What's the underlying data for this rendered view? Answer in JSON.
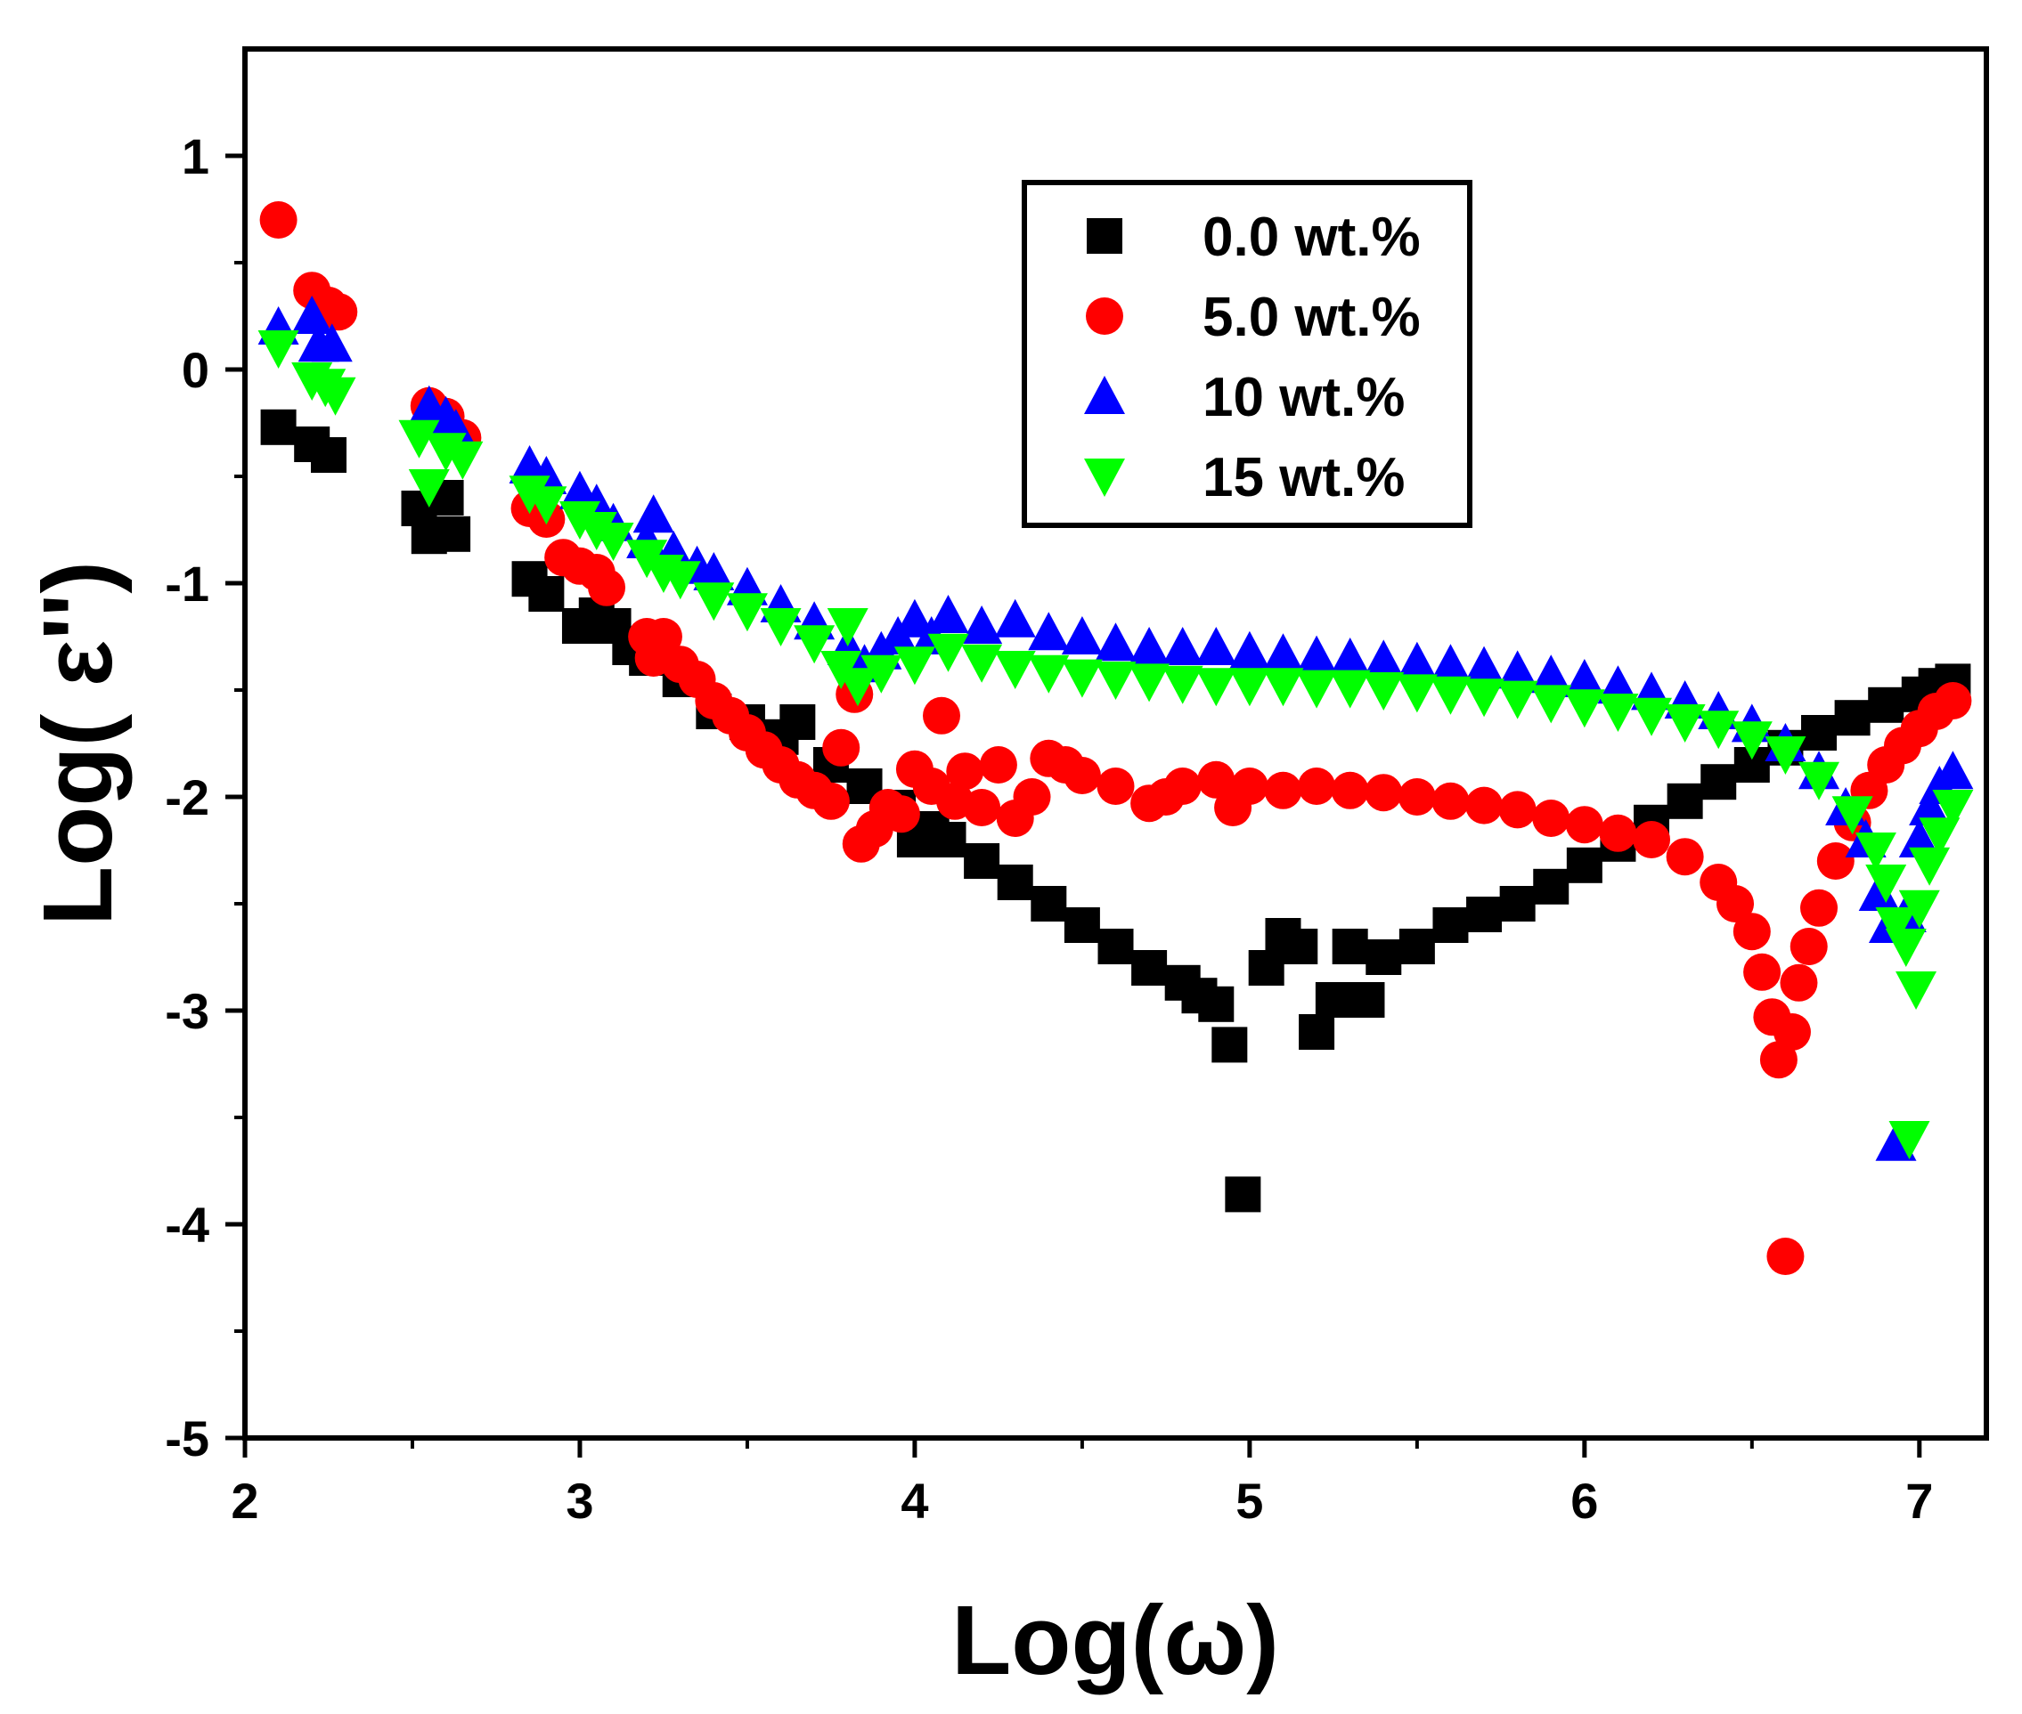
{
  "chart_data": {
    "type": "scatter",
    "title": "",
    "xlabel": "Log(ω)",
    "ylabel": "Log( ε'')",
    "xlim": [
      2,
      7.2
    ],
    "ylim": [
      -5,
      1.5
    ],
    "xticks": [
      "2",
      "3",
      "4",
      "5",
      "6",
      "7"
    ],
    "yticks": [
      "-5",
      "-4",
      "-3",
      "-2",
      "-1",
      "0",
      "1"
    ],
    "legend_position": "top-center-right",
    "series": [
      {
        "name": "0.0 wt.%",
        "color": "#000000",
        "marker": "square",
        "points": [
          [
            2.1,
            -0.27
          ],
          [
            2.2,
            -0.35
          ],
          [
            2.25,
            -0.4
          ],
          [
            2.52,
            -0.65
          ],
          [
            2.55,
            -0.78
          ],
          [
            2.6,
            -0.6
          ],
          [
            2.62,
            -0.77
          ],
          [
            2.85,
            -0.98
          ],
          [
            2.9,
            -1.05
          ],
          [
            3.0,
            -1.2
          ],
          [
            3.05,
            -1.15
          ],
          [
            3.1,
            -1.2
          ],
          [
            3.15,
            -1.3
          ],
          [
            3.2,
            -1.35
          ],
          [
            3.3,
            -1.45
          ],
          [
            3.4,
            -1.6
          ],
          [
            3.5,
            -1.65
          ],
          [
            3.6,
            -1.72
          ],
          [
            3.65,
            -1.65
          ],
          [
            3.75,
            -1.85
          ],
          [
            3.85,
            -1.95
          ],
          [
            3.95,
            -2.05
          ],
          [
            4.0,
            -2.2
          ],
          [
            4.05,
            -2.15
          ],
          [
            4.1,
            -2.2
          ],
          [
            4.2,
            -2.3
          ],
          [
            4.3,
            -2.4
          ],
          [
            4.4,
            -2.5
          ],
          [
            4.5,
            -2.6
          ],
          [
            4.6,
            -2.7
          ],
          [
            4.7,
            -2.8
          ],
          [
            4.8,
            -2.87
          ],
          [
            4.85,
            -2.93
          ],
          [
            4.9,
            -2.97
          ],
          [
            4.94,
            -3.16
          ],
          [
            4.98,
            -3.86
          ],
          [
            5.05,
            -2.8
          ],
          [
            5.1,
            -2.65
          ],
          [
            5.15,
            -2.7
          ],
          [
            5.2,
            -3.1
          ],
          [
            5.25,
            -2.95
          ],
          [
            5.3,
            -2.7
          ],
          [
            5.35,
            -2.95
          ],
          [
            5.4,
            -2.75
          ],
          [
            5.5,
            -2.7
          ],
          [
            5.6,
            -2.6
          ],
          [
            5.7,
            -2.55
          ],
          [
            5.8,
            -2.5
          ],
          [
            5.9,
            -2.42
          ],
          [
            6.0,
            -2.32
          ],
          [
            6.1,
            -2.22
          ],
          [
            6.2,
            -2.12
          ],
          [
            6.3,
            -2.02
          ],
          [
            6.4,
            -1.93
          ],
          [
            6.5,
            -1.85
          ],
          [
            6.6,
            -1.77
          ],
          [
            6.7,
            -1.7
          ],
          [
            6.8,
            -1.63
          ],
          [
            6.9,
            -1.57
          ],
          [
            7.0,
            -1.52
          ],
          [
            7.05,
            -1.48
          ],
          [
            7.1,
            -1.46
          ]
        ]
      },
      {
        "name": "5.0 wt.%",
        "color": "#ff0000",
        "marker": "circle",
        "points": [
          [
            2.1,
            0.7
          ],
          [
            2.2,
            0.37
          ],
          [
            2.25,
            0.3
          ],
          [
            2.28,
            0.27
          ],
          [
            2.55,
            -0.17
          ],
          [
            2.6,
            -0.22
          ],
          [
            2.65,
            -0.32
          ],
          [
            2.85,
            -0.65
          ],
          [
            2.9,
            -0.7
          ],
          [
            2.95,
            -0.88
          ],
          [
            3.0,
            -0.92
          ],
          [
            3.05,
            -0.95
          ],
          [
            3.08,
            -1.02
          ],
          [
            3.2,
            -1.25
          ],
          [
            3.22,
            -1.35
          ],
          [
            3.25,
            -1.25
          ],
          [
            3.3,
            -1.38
          ],
          [
            3.35,
            -1.45
          ],
          [
            3.4,
            -1.55
          ],
          [
            3.45,
            -1.62
          ],
          [
            3.5,
            -1.7
          ],
          [
            3.55,
            -1.78
          ],
          [
            3.6,
            -1.85
          ],
          [
            3.65,
            -1.92
          ],
          [
            3.7,
            -1.97
          ],
          [
            3.75,
            -2.02
          ],
          [
            3.78,
            -1.77
          ],
          [
            3.82,
            -1.52
          ],
          [
            3.84,
            -2.22
          ],
          [
            3.88,
            -2.15
          ],
          [
            3.92,
            -2.05
          ],
          [
            3.96,
            -2.08
          ],
          [
            4.0,
            -1.87
          ],
          [
            4.05,
            -1.95
          ],
          [
            4.08,
            -1.62
          ],
          [
            4.12,
            -2.02
          ],
          [
            4.15,
            -1.88
          ],
          [
            4.2,
            -2.05
          ],
          [
            4.25,
            -1.85
          ],
          [
            4.3,
            -2.1
          ],
          [
            4.35,
            -2.0
          ],
          [
            4.4,
            -1.82
          ],
          [
            4.45,
            -1.85
          ],
          [
            4.5,
            -1.9
          ],
          [
            4.6,
            -1.95
          ],
          [
            4.7,
            -2.03
          ],
          [
            4.75,
            -2.0
          ],
          [
            4.8,
            -1.95
          ],
          [
            4.9,
            -1.92
          ],
          [
            4.95,
            -2.05
          ],
          [
            5.0,
            -1.95
          ],
          [
            5.1,
            -1.97
          ],
          [
            5.2,
            -1.95
          ],
          [
            5.3,
            -1.97
          ],
          [
            5.4,
            -1.98
          ],
          [
            5.5,
            -2.0
          ],
          [
            5.6,
            -2.02
          ],
          [
            5.7,
            -2.04
          ],
          [
            5.8,
            -2.06
          ],
          [
            5.9,
            -2.1
          ],
          [
            6.0,
            -2.13
          ],
          [
            6.1,
            -2.17
          ],
          [
            6.2,
            -2.2
          ],
          [
            6.3,
            -2.28
          ],
          [
            6.4,
            -2.4
          ],
          [
            6.45,
            -2.5
          ],
          [
            6.5,
            -2.63
          ],
          [
            6.53,
            -2.82
          ],
          [
            6.56,
            -3.03
          ],
          [
            6.58,
            -3.23
          ],
          [
            6.6,
            -4.15
          ],
          [
            6.62,
            -3.1
          ],
          [
            6.64,
            -2.87
          ],
          [
            6.67,
            -2.7
          ],
          [
            6.7,
            -2.52
          ],
          [
            6.75,
            -2.3
          ],
          [
            6.8,
            -2.12
          ],
          [
            6.85,
            -1.97
          ],
          [
            6.9,
            -1.85
          ],
          [
            6.95,
            -1.76
          ],
          [
            7.0,
            -1.68
          ],
          [
            7.05,
            -1.6
          ],
          [
            7.1,
            -1.55
          ]
        ]
      },
      {
        "name": "10 wt.%",
        "color": "#0000ff",
        "marker": "triangle-up",
        "points": [
          [
            2.1,
            0.2
          ],
          [
            2.2,
            0.25
          ],
          [
            2.22,
            0.12
          ],
          [
            2.26,
            0.12
          ],
          [
            2.55,
            -0.17
          ],
          [
            2.6,
            -0.22
          ],
          [
            2.63,
            -0.28
          ],
          [
            2.85,
            -0.45
          ],
          [
            2.9,
            -0.5
          ],
          [
            3.0,
            -0.57
          ],
          [
            3.05,
            -0.63
          ],
          [
            3.1,
            -0.72
          ],
          [
            3.2,
            -0.8
          ],
          [
            3.22,
            -0.68
          ],
          [
            3.28,
            -0.85
          ],
          [
            3.35,
            -0.92
          ],
          [
            3.4,
            -0.95
          ],
          [
            3.5,
            -1.02
          ],
          [
            3.6,
            -1.1
          ],
          [
            3.7,
            -1.18
          ],
          [
            3.8,
            -1.3
          ],
          [
            3.85,
            -1.38
          ],
          [
            3.9,
            -1.32
          ],
          [
            3.95,
            -1.25
          ],
          [
            4.0,
            -1.17
          ],
          [
            4.05,
            -1.25
          ],
          [
            4.1,
            -1.15
          ],
          [
            4.2,
            -1.2
          ],
          [
            4.3,
            -1.17
          ],
          [
            4.4,
            -1.23
          ],
          [
            4.5,
            -1.25
          ],
          [
            4.6,
            -1.28
          ],
          [
            4.7,
            -1.3
          ],
          [
            4.8,
            -1.3
          ],
          [
            4.9,
            -1.3
          ],
          [
            5.0,
            -1.32
          ],
          [
            5.1,
            -1.33
          ],
          [
            5.2,
            -1.34
          ],
          [
            5.3,
            -1.35
          ],
          [
            5.4,
            -1.36
          ],
          [
            5.5,
            -1.37
          ],
          [
            5.6,
            -1.38
          ],
          [
            5.7,
            -1.39
          ],
          [
            5.8,
            -1.41
          ],
          [
            5.9,
            -1.43
          ],
          [
            6.0,
            -1.45
          ],
          [
            6.1,
            -1.48
          ],
          [
            6.2,
            -1.51
          ],
          [
            6.3,
            -1.55
          ],
          [
            6.4,
            -1.6
          ],
          [
            6.5,
            -1.66
          ],
          [
            6.6,
            -1.75
          ],
          [
            6.7,
            -1.88
          ],
          [
            6.78,
            -2.05
          ],
          [
            6.84,
            -2.2
          ],
          [
            6.88,
            -2.45
          ],
          [
            6.91,
            -2.6
          ],
          [
            6.93,
            -3.62
          ],
          [
            6.96,
            -2.55
          ],
          [
            7.0,
            -2.2
          ],
          [
            7.03,
            -2.05
          ],
          [
            7.06,
            -1.95
          ],
          [
            7.1,
            -1.88
          ]
        ]
      },
      {
        "name": "15 wt.%",
        "color": "#00ff00",
        "marker": "triangle-down",
        "points": [
          [
            2.1,
            0.1
          ],
          [
            2.2,
            -0.05
          ],
          [
            2.24,
            -0.08
          ],
          [
            2.27,
            -0.12
          ],
          [
            2.52,
            -0.32
          ],
          [
            2.55,
            -0.55
          ],
          [
            2.6,
            -0.38
          ],
          [
            2.65,
            -0.42
          ],
          [
            2.85,
            -0.58
          ],
          [
            2.9,
            -0.63
          ],
          [
            3.0,
            -0.7
          ],
          [
            3.05,
            -0.75
          ],
          [
            3.1,
            -0.8
          ],
          [
            3.2,
            -0.88
          ],
          [
            3.25,
            -0.95
          ],
          [
            3.3,
            -0.98
          ],
          [
            3.4,
            -1.08
          ],
          [
            3.5,
            -1.13
          ],
          [
            3.6,
            -1.2
          ],
          [
            3.7,
            -1.28
          ],
          [
            3.78,
            -1.4
          ],
          [
            3.8,
            -1.2
          ],
          [
            3.83,
            -1.48
          ],
          [
            3.9,
            -1.42
          ],
          [
            4.0,
            -1.38
          ],
          [
            4.1,
            -1.32
          ],
          [
            4.2,
            -1.37
          ],
          [
            4.3,
            -1.4
          ],
          [
            4.4,
            -1.42
          ],
          [
            4.5,
            -1.44
          ],
          [
            4.6,
            -1.45
          ],
          [
            4.7,
            -1.46
          ],
          [
            4.8,
            -1.47
          ],
          [
            4.9,
            -1.48
          ],
          [
            5.0,
            -1.48
          ],
          [
            5.1,
            -1.48
          ],
          [
            5.2,
            -1.49
          ],
          [
            5.3,
            -1.49
          ],
          [
            5.4,
            -1.5
          ],
          [
            5.5,
            -1.51
          ],
          [
            5.6,
            -1.52
          ],
          [
            5.7,
            -1.53
          ],
          [
            5.8,
            -1.54
          ],
          [
            5.9,
            -1.56
          ],
          [
            6.0,
            -1.58
          ],
          [
            6.1,
            -1.6
          ],
          [
            6.2,
            -1.62
          ],
          [
            6.3,
            -1.65
          ],
          [
            6.4,
            -1.68
          ],
          [
            6.5,
            -1.73
          ],
          [
            6.6,
            -1.8
          ],
          [
            6.7,
            -1.92
          ],
          [
            6.8,
            -2.08
          ],
          [
            6.87,
            -2.25
          ],
          [
            6.9,
            -2.4
          ],
          [
            6.93,
            -2.6
          ],
          [
            6.96,
            -2.7
          ],
          [
            6.99,
            -2.9
          ],
          [
            6.97,
            -3.6
          ],
          [
            7.0,
            -2.52
          ],
          [
            7.03,
            -2.32
          ],
          [
            7.06,
            -2.18
          ],
          [
            7.1,
            -2.05
          ]
        ]
      }
    ]
  }
}
